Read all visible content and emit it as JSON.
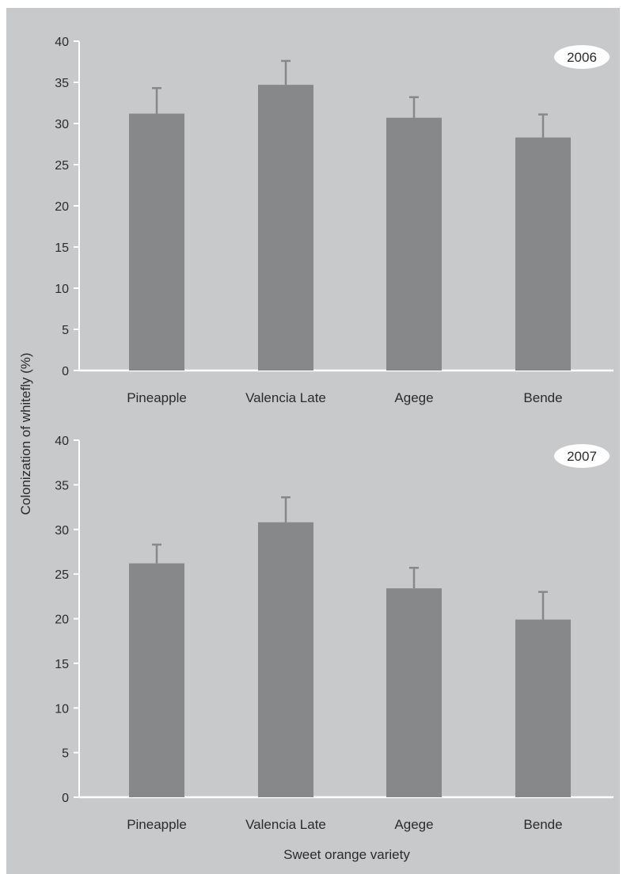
{
  "ylabel": "Colonization of whitefly (%)",
  "xlabel": "Sweet orange variety",
  "colors": {
    "background": "#c8c9cb",
    "bar": "#87888a",
    "error": "#87888a",
    "axis": "#ffffff"
  },
  "chart_data": [
    {
      "type": "bar",
      "title": "2006",
      "categories": [
        "Pineapple",
        "Valencia Late",
        "Agege",
        "Bende"
      ],
      "values": [
        31.2,
        34.7,
        30.7,
        28.3
      ],
      "errors": [
        3.1,
        2.9,
        2.5,
        2.8
      ],
      "ylim": [
        0,
        40
      ],
      "yticks": [
        0,
        5,
        10,
        15,
        20,
        25,
        30,
        35,
        40
      ],
      "xlabel": "Sweet orange variety",
      "ylabel": "Colonization of whitefly (%)"
    },
    {
      "type": "bar",
      "title": "2007",
      "categories": [
        "Pineapple",
        "Valencia Late",
        "Agege",
        "Bende"
      ],
      "values": [
        26.2,
        30.8,
        23.4,
        19.9
      ],
      "errors": [
        2.1,
        2.8,
        2.3,
        3.1
      ],
      "ylim": [
        0,
        40
      ],
      "yticks": [
        0,
        5,
        10,
        15,
        20,
        25,
        30,
        35,
        40
      ],
      "xlabel": "Sweet orange variety",
      "ylabel": "Colonization of whitefly (%)"
    }
  ]
}
